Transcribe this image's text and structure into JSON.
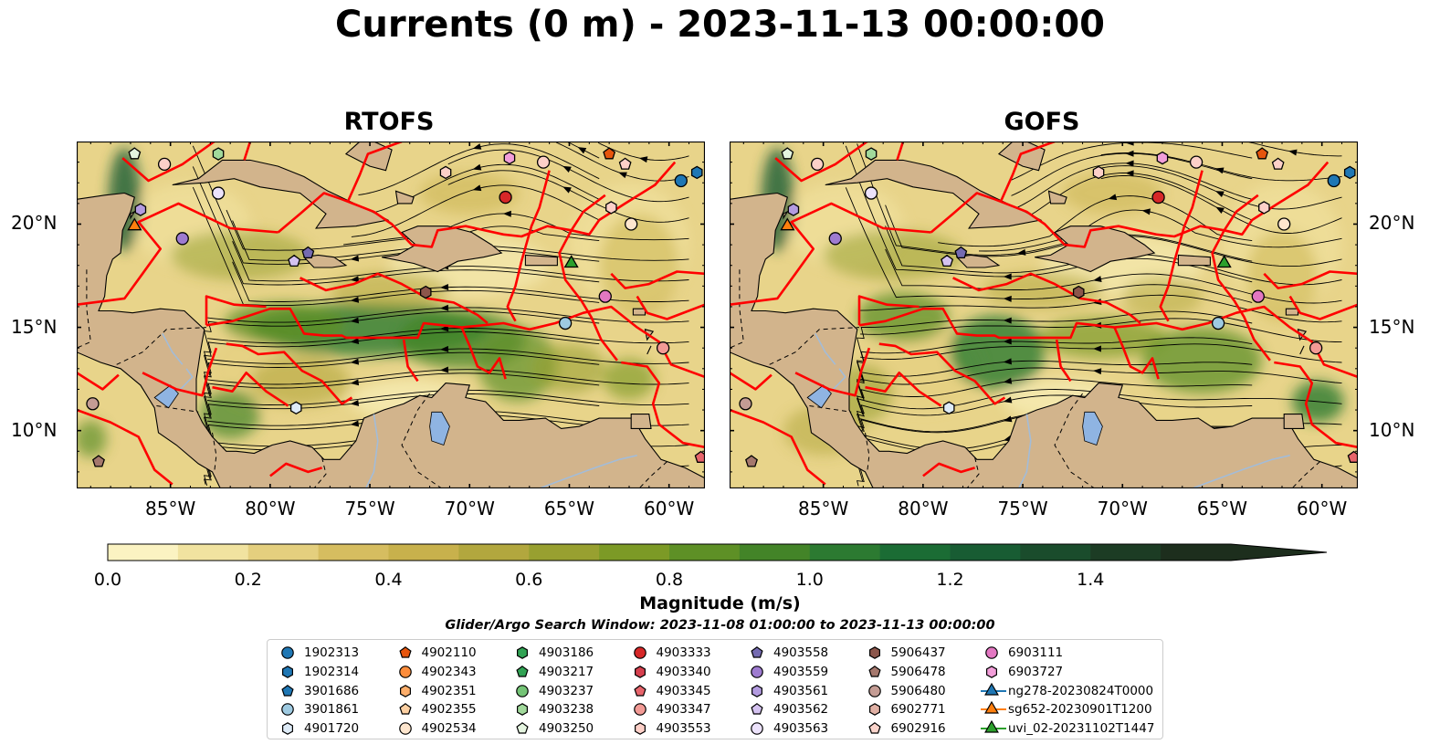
{
  "figure": {
    "title": "Currents (0 m) - 2023-11-13 00:00:00",
    "panels": [
      {
        "title": "RTOFS",
        "yaxis_side": "left"
      },
      {
        "title": "GOFS",
        "yaxis_side": "right"
      }
    ],
    "x_ticks": [
      "85°W",
      "80°W",
      "75°W",
      "70°W",
      "65°W",
      "60°W"
    ],
    "y_ticks": [
      "20°N",
      "15°N",
      "10°N"
    ]
  },
  "colorbar": {
    "label": "Magnitude (m/s)",
    "ticks": [
      "0.0",
      "0.2",
      "0.4",
      "0.6",
      "0.8",
      "1.0",
      "1.2",
      "1.4"
    ],
    "range": [
      0,
      1.6
    ],
    "extend": "max",
    "colors": [
      "#fbf3c2",
      "#f1e3a0",
      "#e4cf7e",
      "#d6bd60",
      "#c8b14c",
      "#b2a73e",
      "#98a030",
      "#7c9a26",
      "#5e9026",
      "#438428",
      "#2c7a31",
      "#1b6c34",
      "#185c33",
      "#1a4c2c",
      "#1c3c24",
      "#1d2e1d"
    ]
  },
  "search_window": "Glider/Argo Search Window: 2023-11-08 01:00:00 to 2023-11-13 00:00:00",
  "map_colors": {
    "land": "#d2b48c",
    "lake": "#8fb4e2",
    "eez_line": "#ff0000",
    "streamline": "#000000",
    "river": "#a3bcd8"
  },
  "legend": {
    "items": [
      {
        "label": "1902313",
        "marker": "circle",
        "color": "#1f77b4"
      },
      {
        "label": "1902314",
        "marker": "hexagon",
        "color": "#1f77b4"
      },
      {
        "label": "3901686",
        "marker": "pentagon",
        "color": "#1f77b4"
      },
      {
        "label": "3901861",
        "marker": "circle",
        "color": "#9ecae1"
      },
      {
        "label": "4901720",
        "marker": "hexagon",
        "color": "#deebf7"
      },
      {
        "label": "4902110",
        "marker": "pentagon",
        "color": "#e6550d"
      },
      {
        "label": "4902343",
        "marker": "circle",
        "color": "#fd8d3c"
      },
      {
        "label": "4902351",
        "marker": "hexagon",
        "color": "#fdae6b"
      },
      {
        "label": "4902355",
        "marker": "pentagon",
        "color": "#fdd0a2"
      },
      {
        "label": "4902534",
        "marker": "circle",
        "color": "#fee6ce"
      },
      {
        "label": "4903186",
        "marker": "hexagon",
        "color": "#31a354"
      },
      {
        "label": "4903217",
        "marker": "pentagon",
        "color": "#31a354"
      },
      {
        "label": "4903237",
        "marker": "circle",
        "color": "#74c476"
      },
      {
        "label": "4903238",
        "marker": "hexagon",
        "color": "#a1d99b"
      },
      {
        "label": "4903250",
        "marker": "pentagon",
        "color": "#e5f5e0"
      },
      {
        "label": "4903333",
        "marker": "circle",
        "color": "#d62728"
      },
      {
        "label": "4903340",
        "marker": "hexagon",
        "color": "#d6404e"
      },
      {
        "label": "4903345",
        "marker": "pentagon",
        "color": "#e7646b"
      },
      {
        "label": "4903347",
        "marker": "circle",
        "color": "#f29a95"
      },
      {
        "label": "4903553",
        "marker": "hexagon",
        "color": "#fdd0c8"
      },
      {
        "label": "4903558",
        "marker": "pentagon",
        "color": "#756bb1"
      },
      {
        "label": "4903559",
        "marker": "circle",
        "color": "#9e7bd0"
      },
      {
        "label": "4903561",
        "marker": "hexagon",
        "color": "#b39be0"
      },
      {
        "label": "4903562",
        "marker": "pentagon",
        "color": "#d4c2f0"
      },
      {
        "label": "4903563",
        "marker": "circle",
        "color": "#ece2fb"
      },
      {
        "label": "5906437",
        "marker": "hexagon",
        "color": "#8c564b"
      },
      {
        "label": "5906478",
        "marker": "pentagon",
        "color": "#a5786d"
      },
      {
        "label": "5906480",
        "marker": "circle",
        "color": "#c49c94"
      },
      {
        "label": "6902771",
        "marker": "hexagon",
        "color": "#e0b0a4"
      },
      {
        "label": "6902916",
        "marker": "pentagon",
        "color": "#fcd5cc"
      },
      {
        "label": "6903111",
        "marker": "circle",
        "color": "#e377c2"
      },
      {
        "label": "6903727",
        "marker": "hexagon",
        "color": "#f29ed9"
      },
      {
        "label": "ng278-20230824T0000",
        "marker": "triangle-line",
        "color": "#1f77b4"
      },
      {
        "label": "sg652-20230901T1200",
        "marker": "triangle-line",
        "color": "#ff7f0e"
      },
      {
        "label": "uvi_02-20231102T1447",
        "marker": "triangle-line",
        "color": "#2ca02c"
      }
    ]
  }
}
